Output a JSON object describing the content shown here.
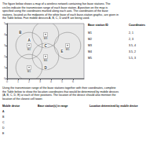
{
  "chart_data": {
    "type": "scatter",
    "description": "The figure below shows a map of a wireless network containing five base stations. The\ncircles indicate the transmission range of each base station. A position on the map is\nspecified using the coordinates marked along each axis. The coordinates of the base\nstations, located as the midpoints of the white base of each base-station graphic, are given in\nthe Table below. Five mobile devices A, B, C, D and E are being used.",
    "table1": {
      "header": [
        "Base station ID",
        "Coordinates"
      ],
      "rows": [
        [
          "M1",
          "2, 1"
        ],
        [
          "M2",
          "2, 3"
        ],
        [
          "M3",
          "3.5, 4"
        ],
        [
          "M4",
          "3.5, 2"
        ],
        [
          "M5",
          "5.5, 3"
        ]
      ]
    },
    "base_stations": [
      {
        "label": "M1",
        "x": 2.0,
        "y": 1.0,
        "radius": 1.2
      },
      {
        "label": "M2",
        "x": 2.0,
        "y": 3.0,
        "radius": 1.2
      },
      {
        "label": "M3",
        "x": 3.5,
        "y": 4.0,
        "radius": 1.2
      },
      {
        "label": "M4",
        "x": 3.5,
        "y": 2.0,
        "radius": 1.2
      },
      {
        "label": "M5",
        "x": 5.5,
        "y": 3.0,
        "radius": 1.2
      }
    ],
    "mobile_devices": [
      {
        "label": "A",
        "x": 2.0,
        "y": 3.5
      },
      {
        "label": "B",
        "x": 1.2,
        "y": 4.2
      },
      {
        "label": "C",
        "x": 3.5,
        "y": 3.0
      },
      {
        "label": "D",
        "x": 3.5,
        "y": 1.0
      },
      {
        "label": "E",
        "x": 5.0,
        "y": 2.5
      }
    ],
    "xlim": [
      0,
      7
    ],
    "ylim": [
      0,
      5
    ],
    "xticks": [
      0,
      1,
      2,
      3,
      4,
      5,
      6
    ],
    "yticks": [
      0,
      1,
      2,
      3,
      4,
      5
    ],
    "grid": false,
    "background": "#e8e8e8",
    "circle_color": "#888888",
    "mid_text": "Using the transmission range of the base stations together with their coordinates, complete\nthe Table below to show the location coordinates that would be determined by mobile devices\n(A, B, C, D, E) at each of their positions. The location of the device should also mention the\nlocation of the closest cell tower.",
    "table2": {
      "header": [
        "Mobile device",
        "Base station(s) in range",
        "Location determined by mobile device"
      ],
      "rows": [
        "A",
        "B",
        "C",
        "D",
        "E"
      ]
    }
  }
}
